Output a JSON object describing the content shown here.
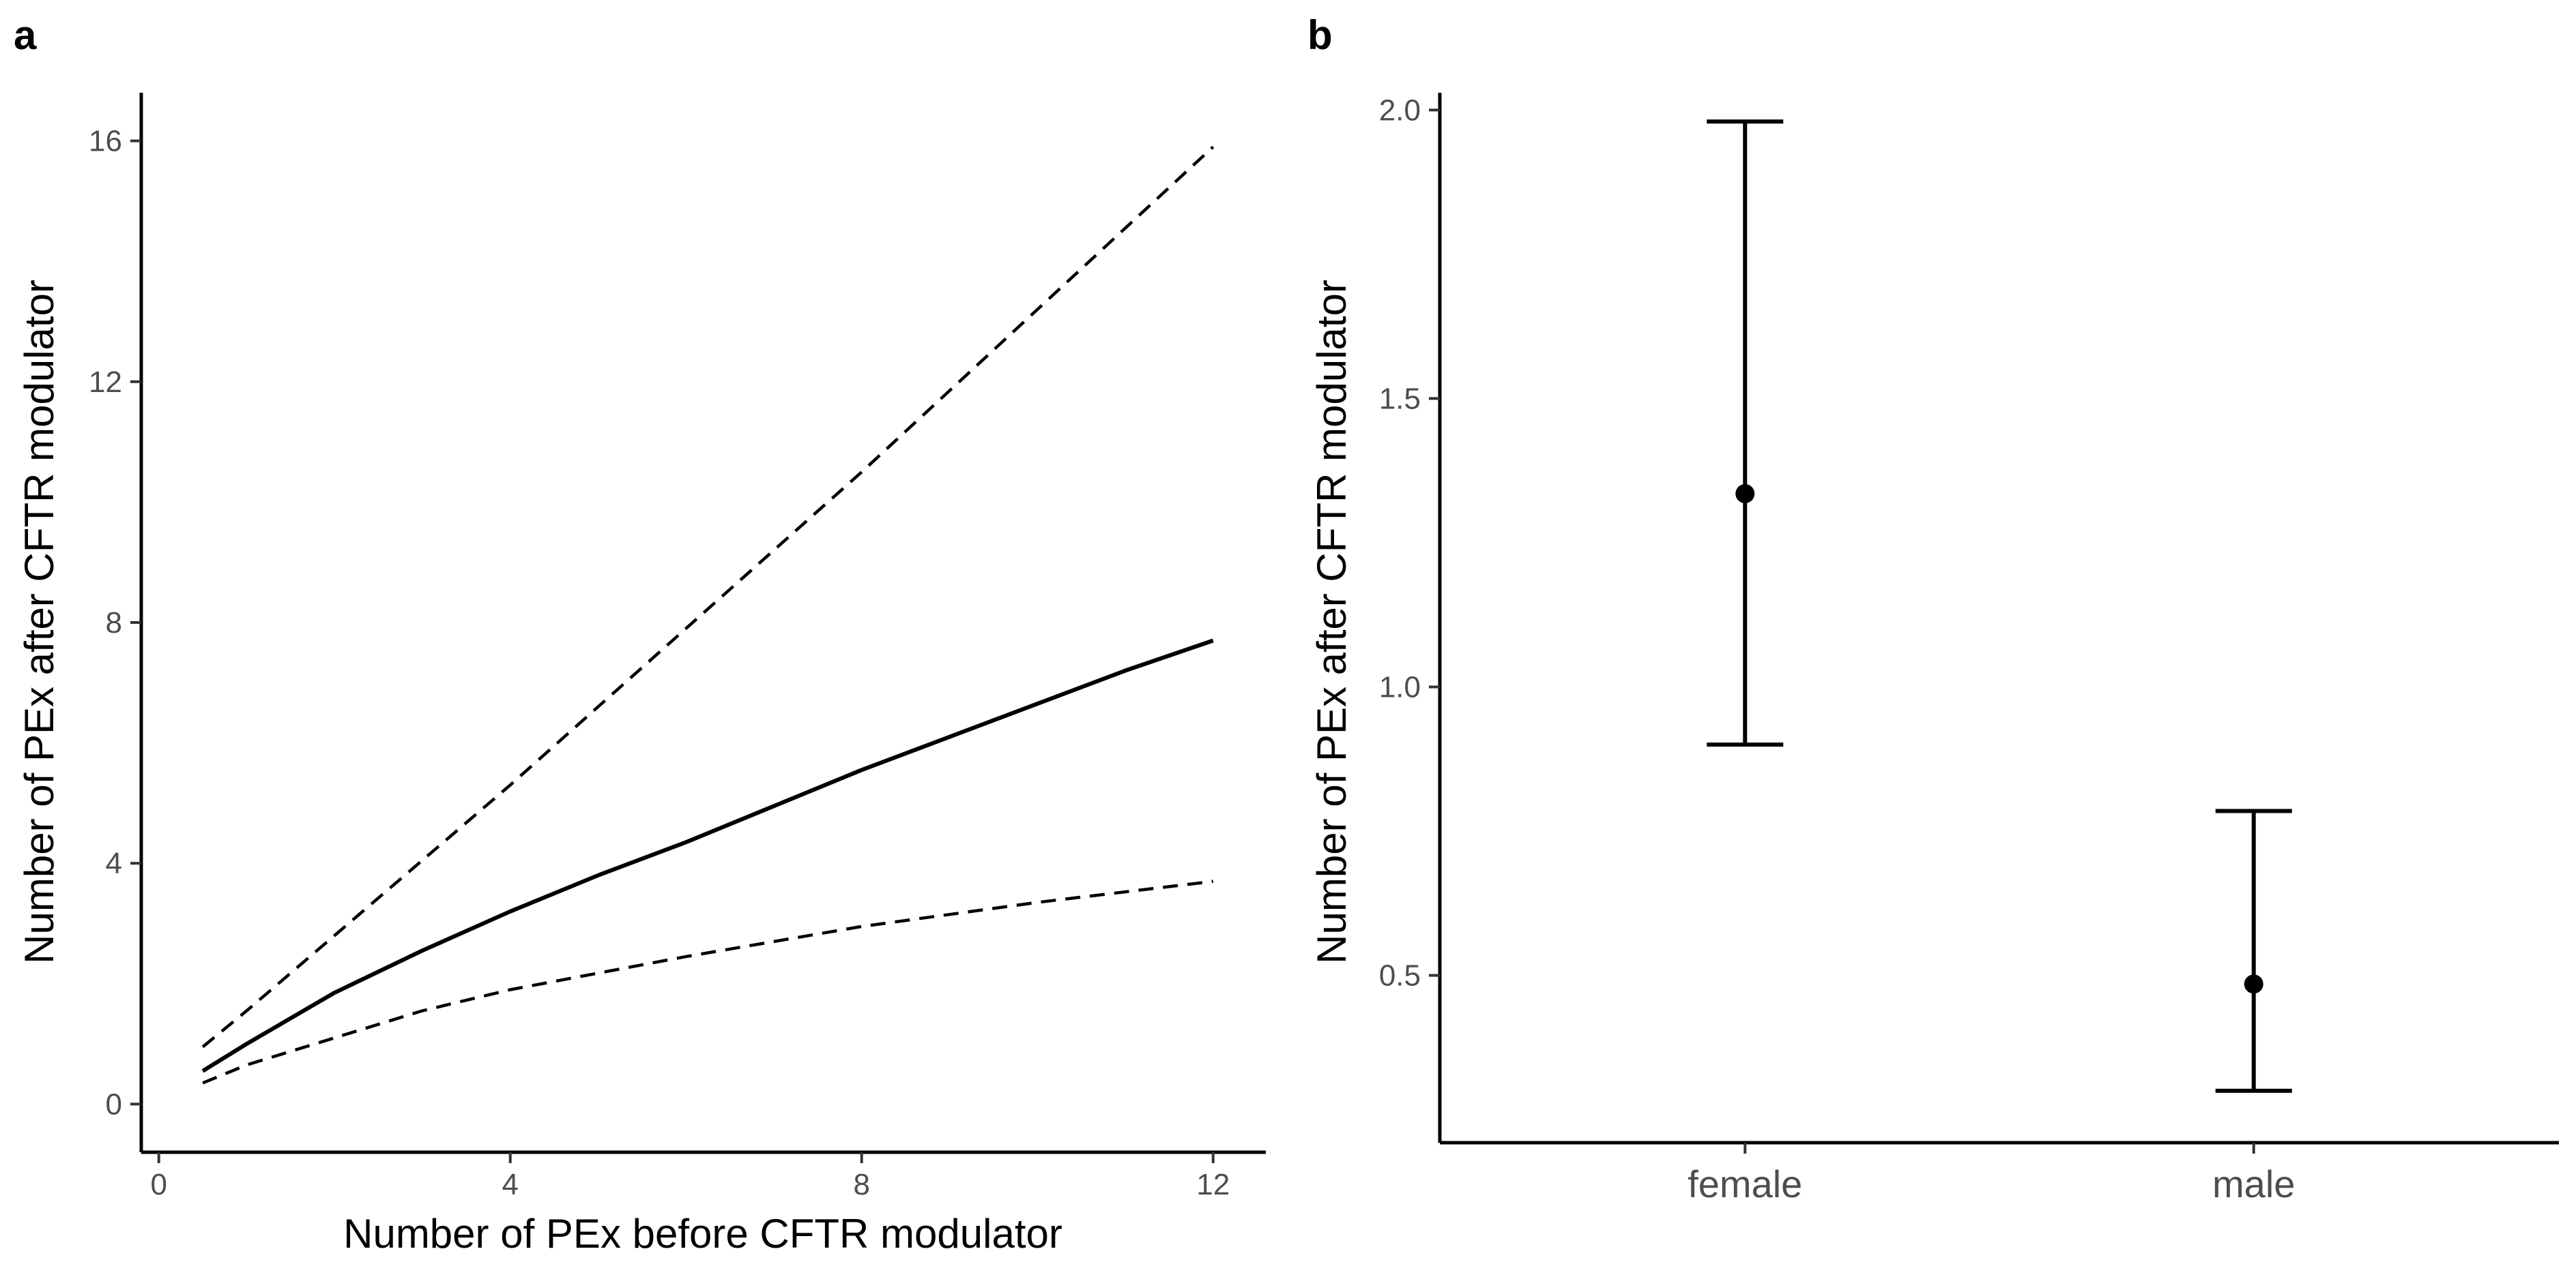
{
  "chart_data": [
    {
      "panel": "a",
      "type": "line",
      "xlabel": "Number of PEx before CFTR modulator",
      "ylabel": "Number of PEx after CFTR modulator",
      "xlim": [
        -0.2,
        12.6
      ],
      "ylim": [
        -0.8,
        16.8
      ],
      "xticks": [
        0,
        4,
        8,
        12
      ],
      "yticks": [
        0,
        4,
        8,
        12,
        16
      ],
      "grid": false,
      "series": [
        {
          "name": "estimate",
          "style": "solid",
          "x": [
            0.5,
            1,
            2,
            3,
            4,
            5,
            6,
            7,
            8,
            9,
            10,
            11,
            12
          ],
          "y": [
            0.55,
            1.0,
            1.85,
            2.55,
            3.2,
            3.8,
            4.35,
            4.95,
            5.55,
            6.1,
            6.65,
            7.2,
            7.7
          ]
        },
        {
          "name": "upper CI",
          "style": "dashed",
          "x": [
            0.5,
            1,
            2,
            4,
            6,
            8,
            10,
            12
          ],
          "y": [
            0.95,
            1.55,
            2.8,
            5.3,
            7.9,
            10.5,
            13.2,
            15.9
          ]
        },
        {
          "name": "lower CI",
          "style": "dashed",
          "x": [
            0.5,
            1,
            2,
            3,
            4,
            6,
            8,
            10,
            12
          ],
          "y": [
            0.35,
            0.65,
            1.1,
            1.55,
            1.9,
            2.45,
            2.95,
            3.35,
            3.7
          ]
        }
      ]
    },
    {
      "panel": "b",
      "type": "scatter",
      "xlabel": "",
      "ylabel": "Number of PEx after CFTR modulator",
      "ylim": [
        0.21,
        2.03
      ],
      "yticks": [
        0.5,
        1.0,
        1.5,
        2.0
      ],
      "ytick_labels": [
        "0.5",
        "1.0",
        "1.5",
        "2.0"
      ],
      "grid": false,
      "categories": [
        "female",
        "male"
      ],
      "points": [
        {
          "category": "female",
          "estimate": 1.335,
          "lower": 0.9,
          "upper": 1.98
        },
        {
          "category": "male",
          "estimate": 0.485,
          "lower": 0.3,
          "upper": 0.785
        }
      ]
    }
  ]
}
